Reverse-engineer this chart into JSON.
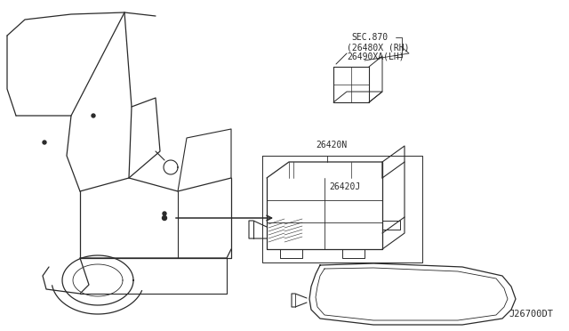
{
  "bg_color": "#ffffff",
  "line_color": "#2a2a2a",
  "text_color": "#2a2a2a",
  "diagram_id": "J26700DT",
  "label_26420N": "26420N",
  "label_26420J": "26420J",
  "label_sec870_line1": "SEC.870",
  "label_sec870_line2": "(26480X (RH)",
  "label_sec870_line3": "26490XA(LH)",
  "font_size": 7.0,
  "font_family": "DejaVu Sans Mono"
}
